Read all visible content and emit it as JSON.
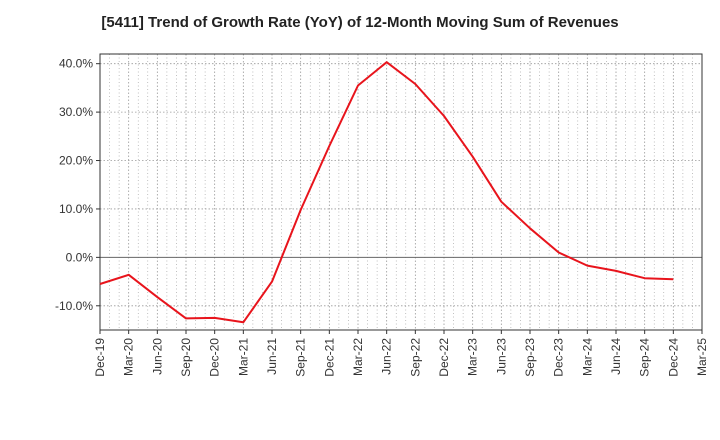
{
  "chart_data": {
    "type": "line",
    "title": "[5411]  Trend of Growth Rate (YoY) of 12-Month Moving Sum of Revenues",
    "xlabel": "",
    "ylabel": "",
    "x": [
      "Dec-19",
      "Mar-20",
      "Jun-20",
      "Sep-20",
      "Dec-20",
      "Mar-21",
      "Jun-21",
      "Sep-21",
      "Dec-21",
      "Mar-22",
      "Jun-22",
      "Sep-22",
      "Dec-22",
      "Mar-23",
      "Jun-23",
      "Sep-23",
      "Dec-23",
      "Mar-24",
      "Jun-24",
      "Sep-24",
      "Dec-24",
      "Mar-25"
    ],
    "ylim": [
      -15,
      42
    ],
    "yticks": [
      -10,
      0,
      10,
      20,
      30,
      40
    ],
    "ytick_labels": [
      "-10.0%",
      "0.0%",
      "10.0%",
      "20.0%",
      "30.0%",
      "40.0%"
    ],
    "grid": true,
    "series": [
      {
        "color": "#e8141c",
        "values": [
          -5.5,
          -3.6,
          -8.2,
          -12.6,
          -12.5,
          -13.4,
          -5.0,
          9.8,
          23.0,
          35.5,
          40.3,
          35.8,
          29.2,
          20.8,
          11.5,
          6.0,
          1.0,
          -1.7,
          -2.8,
          -4.3,
          -4.5,
          null
        ]
      }
    ],
    "colors": {
      "line": "#e8141c",
      "zero_line": "#666666",
      "grid": "#999999",
      "axis": "#333333"
    }
  }
}
